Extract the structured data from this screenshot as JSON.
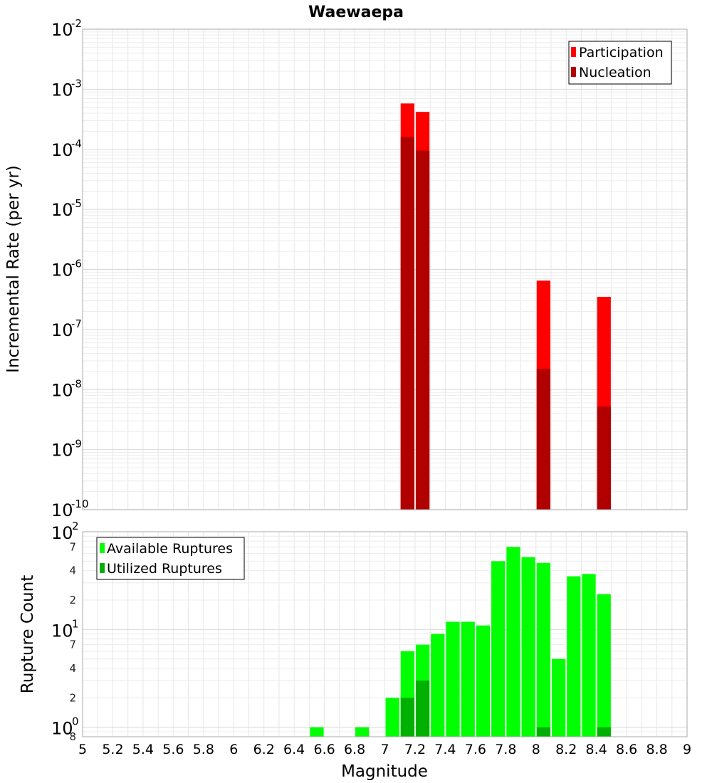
{
  "chart_data": [
    {
      "type": "bar",
      "title": "Waewaepa",
      "ylabel": "Incremental Rate (per yr)",
      "xlim": [
        5,
        9
      ],
      "ylim": [
        1e-10,
        0.01
      ],
      "yscale": "log",
      "grid": true,
      "legend_position": "top-right",
      "series": [
        {
          "name": "Participation",
          "color": "#ff0000",
          "x": [
            7.15,
            7.25,
            8.05,
            8.45
          ],
          "values": [
            0.00058,
            0.00042,
            6.5e-07,
            3.5e-07
          ]
        },
        {
          "name": "Nucleation",
          "color": "#b00000",
          "x": [
            7.15,
            7.25,
            8.05,
            8.45
          ],
          "values": [
            0.00016,
            9.5e-05,
            2.2e-08,
            5.2e-09
          ]
        }
      ]
    },
    {
      "type": "bar",
      "xlabel": "Magnitude",
      "ylabel": "Rupture Count",
      "xlim": [
        5,
        9
      ],
      "ylim": [
        0.8,
        100
      ],
      "yscale": "log",
      "grid": true,
      "legend_position": "top-left",
      "series": [
        {
          "name": "Available Ruptures",
          "color": "#00ff00",
          "x": [
            6.55,
            6.85,
            7.05,
            7.15,
            7.25,
            7.35,
            7.45,
            7.55,
            7.65,
            7.75,
            7.85,
            7.95,
            8.05,
            8.15,
            8.25,
            8.35,
            8.45
          ],
          "values": [
            1,
            1,
            2,
            6,
            7,
            9,
            12,
            12,
            11,
            50,
            70,
            55,
            48,
            5,
            35,
            37,
            23
          ]
        },
        {
          "name": "Utilized Ruptures",
          "color": "#00b000",
          "x": [
            7.15,
            7.25,
            8.05,
            8.45
          ],
          "values": [
            2,
            3,
            1,
            1
          ]
        }
      ]
    }
  ],
  "xticks": [
    "5",
    "5.2",
    "5.4",
    "5.6",
    "5.8",
    "6",
    "6.2",
    "6.4",
    "6.6",
    "6.8",
    "7",
    "7.2",
    "7.4",
    "7.6",
    "7.8",
    "8",
    "8.2",
    "8.4",
    "8.6",
    "8.8",
    "9"
  ],
  "top_yticks": [
    {
      "base": "10",
      "exp": "-2"
    },
    {
      "base": "10",
      "exp": "-3"
    },
    {
      "base": "10",
      "exp": "-4"
    },
    {
      "base": "10",
      "exp": "-5"
    },
    {
      "base": "10",
      "exp": "-6"
    },
    {
      "base": "10",
      "exp": "-7"
    },
    {
      "base": "10",
      "exp": "-8"
    },
    {
      "base": "10",
      "exp": "-9"
    },
    {
      "base": "10",
      "exp": "-10"
    }
  ],
  "bottom_yticks": [
    {
      "base": "10",
      "exp": "2"
    },
    {
      "base": "10",
      "exp": "1"
    },
    {
      "base": "10",
      "exp": "0"
    }
  ],
  "bottom_minor_yticks": [
    "7",
    "4",
    "2",
    "7",
    "4",
    "2",
    "8"
  ]
}
